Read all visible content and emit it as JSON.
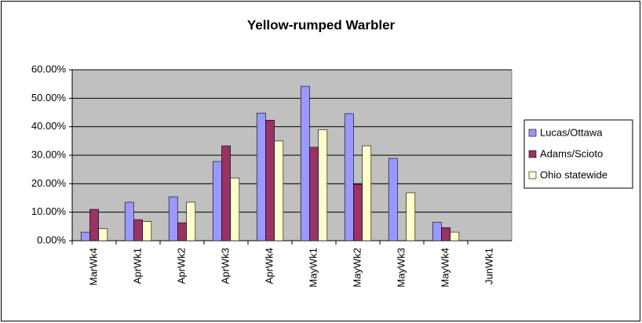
{
  "chart_data": {
    "type": "bar",
    "title": "Yellow-rumped Warbler",
    "categories": [
      "MarWk4",
      "AprWk1",
      "AprWk2",
      "AprWk3",
      "AprWk4",
      "MayWk1",
      "MayWk2",
      "MayWk3",
      "MayWk4",
      "JunWk1"
    ],
    "series": [
      {
        "name": "Lucas/Ottawa",
        "color": "#9999ff",
        "values": [
          3.0,
          13.5,
          15.4,
          27.8,
          44.8,
          54.2,
          44.6,
          28.9,
          6.5,
          0
        ]
      },
      {
        "name": "Adams/Scioto",
        "color": "#993366",
        "values": [
          11.0,
          7.4,
          6.3,
          33.3,
          42.3,
          32.8,
          19.8,
          0,
          4.6,
          0
        ]
      },
      {
        "name": "Ohio statewide",
        "color": "#ffffcc",
        "values": [
          4.2,
          6.7,
          13.5,
          22.0,
          35.0,
          39.0,
          33.3,
          16.8,
          3.0,
          0
        ]
      }
    ],
    "ylim": [
      0,
      60
    ],
    "yticks": [
      {
        "value": 0,
        "label": "0.00%"
      },
      {
        "value": 10,
        "label": "10.00%"
      },
      {
        "value": 20,
        "label": "20.00%"
      },
      {
        "value": 30,
        "label": "30.00%"
      },
      {
        "value": 40,
        "label": "40.00%"
      },
      {
        "value": 50,
        "label": "50.00%"
      },
      {
        "value": 60,
        "label": "60.00%"
      }
    ],
    "grid": true,
    "legend": "right"
  }
}
